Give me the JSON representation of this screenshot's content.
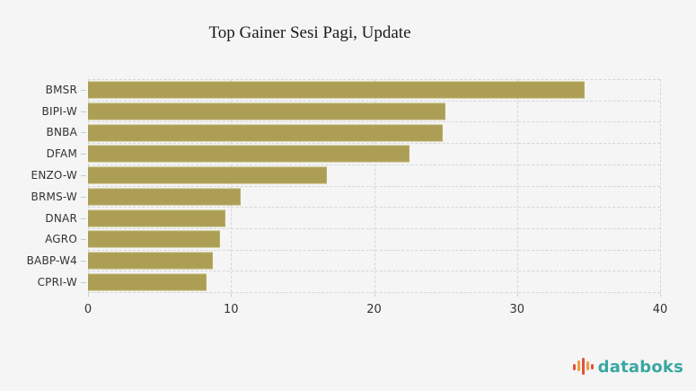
{
  "title": "Top Gainer Sesi Pagi, Update",
  "chart_data": {
    "type": "bar",
    "orientation": "horizontal",
    "title": "Top Gainer Sesi Pagi, Update",
    "categories": [
      "BMSR",
      "BIPI-W",
      "BNBA",
      "DFAM",
      "ENZO-W",
      "BRMS-W",
      "DNAR",
      "AGRO",
      "BABP-W4",
      "CPRI-W"
    ],
    "values": [
      34.7,
      25.0,
      24.8,
      22.5,
      16.7,
      10.7,
      9.6,
      9.2,
      8.7,
      8.3
    ],
    "xlabel": "",
    "ylabel": "",
    "xlim": [
      0,
      40
    ],
    "xticks": [
      0,
      10,
      20,
      30,
      40
    ],
    "grid": "dashed",
    "legend": "none",
    "bar_color": "#ac9e54",
    "background_color": "#f5f5f5",
    "gridline_color": "#d6d6d6",
    "text_color": "#333333"
  },
  "branding": {
    "logo_text": "databoks",
    "logo_color": "#3aa7a2",
    "icon": "bar-chart-icon",
    "icon_colors": [
      "#e15241",
      "#ee9d3e"
    ]
  }
}
